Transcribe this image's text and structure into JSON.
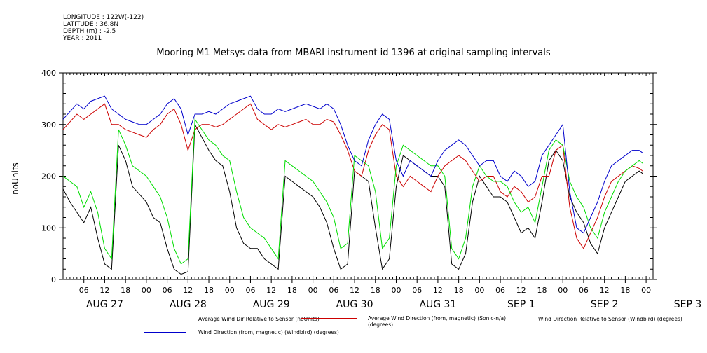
{
  "metadata_lines": [
    "LONGITUDE : 122W(-122)",
    "LATITUDE : 36.8N",
    "DEPTH (m) : -2.5",
    "YEAR : 2011"
  ],
  "chart_data": {
    "type": "line",
    "title": "Mooring M1 Metsys data from MBARI instrument id 1396 at original sampling intervals",
    "ylabel": "noUnits",
    "xlabel": "",
    "ylim": [
      0,
      400
    ],
    "y_ticks": [
      0,
      100,
      200,
      300,
      400
    ],
    "x_range_hours": [
      0,
      170
    ],
    "hour_tick_labels": [
      "06",
      "12",
      "18",
      "00",
      "06",
      "12",
      "18",
      "00",
      "06",
      "12",
      "18",
      "00",
      "06",
      "12",
      "18",
      "00",
      "06",
      "12",
      "18",
      "00",
      "06",
      "12",
      "18",
      "00",
      "06",
      "12",
      "18",
      "00"
    ],
    "day_labels": [
      "AUG 27",
      "AUG 28",
      "AUG 29",
      "AUG 30",
      "AUG 31",
      "SEP  1",
      "SEP  2",
      "SEP  3"
    ],
    "grid": false,
    "legend_position": "bottom",
    "series": [
      {
        "name": "Average Wind Dir Relative to Sensor (noUnits)",
        "color": "#000000",
        "x": [
          0,
          2,
          4,
          6,
          8,
          10,
          12,
          14,
          16,
          18,
          20,
          22,
          24,
          26,
          28,
          30,
          32,
          34,
          36,
          38,
          40,
          42,
          44,
          46,
          48,
          50,
          52,
          54,
          56,
          58,
          60,
          62,
          64,
          66,
          68,
          70,
          72,
          74,
          76,
          78,
          80,
          82,
          84,
          86,
          88,
          90,
          92,
          94,
          96,
          98,
          100,
          102,
          104,
          106,
          108,
          110,
          112,
          114,
          116,
          118,
          120,
          122,
          124,
          126,
          128,
          130,
          132,
          134,
          136,
          138,
          140,
          142,
          144,
          146,
          148,
          150,
          152,
          154,
          156,
          158,
          160,
          162,
          164,
          166,
          167
        ],
        "values": [
          175,
          150,
          130,
          110,
          140,
          80,
          30,
          20,
          260,
          230,
          180,
          165,
          150,
          120,
          110,
          60,
          20,
          10,
          15,
          300,
          275,
          250,
          230,
          220,
          170,
          100,
          70,
          60,
          60,
          40,
          30,
          20,
          200,
          190,
          180,
          170,
          160,
          140,
          110,
          60,
          20,
          30,
          210,
          200,
          190,
          100,
          20,
          40,
          180,
          240,
          230,
          220,
          210,
          200,
          200,
          180,
          30,
          20,
          50,
          150,
          200,
          180,
          160,
          160,
          150,
          120,
          90,
          100,
          80,
          150,
          230,
          250,
          230,
          160,
          130,
          110,
          70,
          50,
          100,
          130,
          160,
          190,
          200,
          210,
          205
        ]
      },
      {
        "name": "Average Wind Direction (from, magnetic) (Sonic-n/a) (degrees)",
        "color": "#cc0000",
        "x": [
          0,
          2,
          4,
          6,
          8,
          10,
          12,
          14,
          16,
          18,
          20,
          22,
          24,
          26,
          28,
          30,
          32,
          34,
          36,
          38,
          40,
          42,
          44,
          46,
          48,
          50,
          52,
          54,
          56,
          58,
          60,
          62,
          64,
          66,
          68,
          70,
          72,
          74,
          76,
          78,
          80,
          82,
          84,
          86,
          88,
          90,
          92,
          94,
          96,
          98,
          100,
          102,
          104,
          106,
          108,
          110,
          112,
          114,
          116,
          118,
          120,
          122,
          124,
          126,
          128,
          130,
          132,
          134,
          136,
          138,
          140,
          142,
          144,
          146,
          148,
          150,
          152,
          154,
          156,
          158,
          160,
          162,
          164,
          166,
          167
        ],
        "values": [
          290,
          305,
          320,
          310,
          320,
          330,
          340,
          300,
          300,
          290,
          285,
          280,
          275,
          290,
          300,
          320,
          330,
          300,
          250,
          290,
          300,
          300,
          295,
          300,
          310,
          320,
          330,
          340,
          310,
          300,
          290,
          300,
          295,
          300,
          305,
          310,
          300,
          300,
          310,
          305,
          280,
          250,
          210,
          200,
          250,
          280,
          300,
          290,
          200,
          180,
          200,
          190,
          180,
          170,
          200,
          220,
          230,
          240,
          230,
          210,
          190,
          200,
          200,
          170,
          160,
          180,
          170,
          150,
          160,
          200,
          200,
          250,
          260,
          140,
          80,
          60,
          90,
          120,
          160,
          190,
          200,
          210,
          220,
          215,
          210
        ]
      },
      {
        "name": "Wind Direction Relative to Sensor (Windbird) (degrees)",
        "color": "#00dd00",
        "x": [
          0,
          2,
          4,
          6,
          8,
          10,
          12,
          14,
          16,
          18,
          20,
          22,
          24,
          26,
          28,
          30,
          32,
          34,
          36,
          38,
          40,
          42,
          44,
          46,
          48,
          50,
          52,
          54,
          56,
          58,
          60,
          62,
          64,
          66,
          68,
          70,
          72,
          74,
          76,
          78,
          80,
          82,
          84,
          86,
          88,
          90,
          92,
          94,
          96,
          98,
          100,
          102,
          104,
          106,
          108,
          110,
          112,
          114,
          116,
          118,
          120,
          122,
          124,
          126,
          128,
          130,
          132,
          134,
          136,
          138,
          140,
          142,
          144,
          146,
          148,
          150,
          152,
          154,
          156,
          158,
          160,
          162,
          164,
          166,
          167
        ],
        "values": [
          200,
          190,
          180,
          140,
          170,
          130,
          60,
          40,
          290,
          260,
          220,
          210,
          200,
          180,
          160,
          120,
          60,
          30,
          40,
          310,
          290,
          270,
          260,
          240,
          230,
          170,
          120,
          100,
          90,
          80,
          60,
          40,
          230,
          220,
          210,
          200,
          190,
          170,
          150,
          120,
          60,
          70,
          240,
          230,
          220,
          170,
          60,
          80,
          220,
          260,
          250,
          240,
          230,
          220,
          220,
          200,
          60,
          40,
          80,
          180,
          220,
          200,
          190,
          190,
          180,
          150,
          130,
          140,
          110,
          180,
          250,
          270,
          260,
          190,
          160,
          140,
          100,
          80,
          130,
          160,
          190,
          210,
          220,
          230,
          225
        ]
      },
      {
        "name": "Wind Direction (from, magnetic) (Windbird) (degrees)",
        "color": "#0000cc",
        "x": [
          0,
          2,
          4,
          6,
          8,
          10,
          12,
          14,
          16,
          18,
          20,
          22,
          24,
          26,
          28,
          30,
          32,
          34,
          36,
          38,
          40,
          42,
          44,
          46,
          48,
          50,
          52,
          54,
          56,
          58,
          60,
          62,
          64,
          66,
          68,
          70,
          72,
          74,
          76,
          78,
          80,
          82,
          84,
          86,
          88,
          90,
          92,
          94,
          96,
          98,
          100,
          102,
          104,
          106,
          108,
          110,
          112,
          114,
          116,
          118,
          120,
          122,
          124,
          126,
          128,
          130,
          132,
          134,
          136,
          138,
          140,
          142,
          144,
          146,
          148,
          150,
          152,
          154,
          156,
          158,
          160,
          162,
          164,
          166,
          167
        ],
        "values": [
          310,
          325,
          340,
          330,
          345,
          350,
          355,
          330,
          320,
          310,
          305,
          300,
          300,
          310,
          320,
          340,
          350,
          330,
          280,
          320,
          320,
          325,
          320,
          330,
          340,
          345,
          350,
          355,
          330,
          320,
          320,
          330,
          325,
          330,
          335,
          340,
          335,
          330,
          340,
          330,
          300,
          260,
          230,
          220,
          270,
          300,
          320,
          310,
          230,
          200,
          230,
          220,
          210,
          200,
          230,
          250,
          260,
          270,
          260,
          240,
          220,
          230,
          230,
          200,
          190,
          210,
          200,
          180,
          190,
          240,
          260,
          280,
          300,
          170,
          100,
          90,
          120,
          150,
          190,
          220,
          230,
          240,
          250,
          250,
          245
        ]
      }
    ]
  }
}
